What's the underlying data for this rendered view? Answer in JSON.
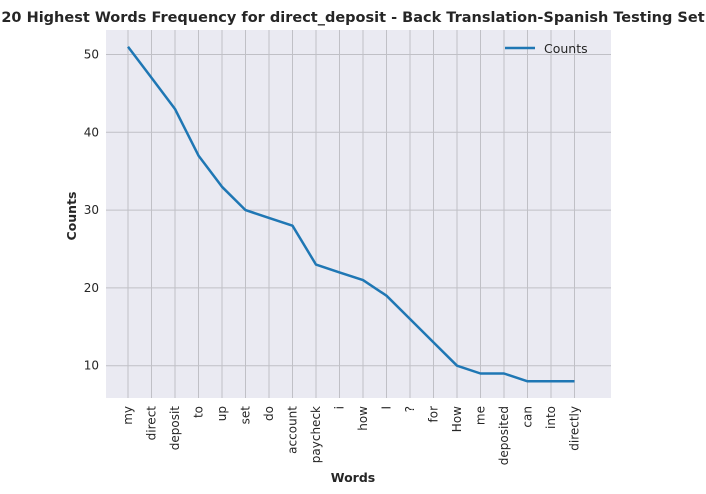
{
  "chart_data": {
    "type": "line",
    "title": "20 Highest Words Frequency for direct_deposit - Back Translation-Spanish Testing Set",
    "xlabel": "Words",
    "ylabel": "Counts",
    "categories": [
      "my",
      "direct",
      "deposit",
      "to",
      "up",
      "set",
      "do",
      "account",
      "paycheck",
      "i",
      "how",
      "I",
      "?",
      "for",
      "How",
      "me",
      "deposited",
      "can",
      "into",
      "directly"
    ],
    "series": [
      {
        "name": "Counts",
        "values": [
          51,
          47,
          43,
          37,
          33,
          30,
          29,
          28,
          23,
          22,
          21,
          19,
          16,
          13,
          10,
          9,
          9,
          8,
          8,
          8
        ]
      }
    ],
    "yticks": [
      10,
      20,
      30,
      40,
      50
    ],
    "ylim": [
      5.85,
      53.15
    ],
    "grid": true,
    "legend": "top-right",
    "colors": {
      "line": "#1f77b4",
      "background": "#eaeaf2",
      "grid": "#c0c0c6"
    }
  }
}
